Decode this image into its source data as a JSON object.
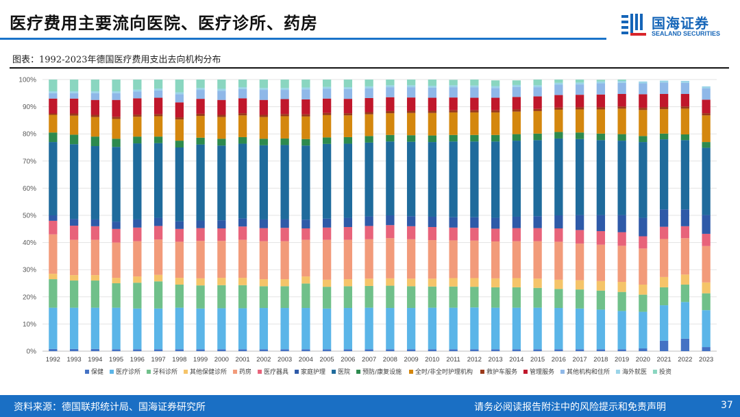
{
  "page": {
    "title": "医疗费用主要流向医院、医疗诊所、药房",
    "figure_caption": "图表：1992-2023年德国医疗费用支出去向机构分布",
    "source": "资料来源：德国联邦统计局、国海证券研究所",
    "disclaimer": "请务必阅读报告附注中的风险提示和免责声明",
    "page_number": "37",
    "logo_cn": "国海证券",
    "logo_en": "SEALAND SECURITIES",
    "brand_color": "#1a6fc4"
  },
  "chart_data": {
    "type": "bar",
    "stacked": true,
    "normalized": true,
    "title": "",
    "xlabel": "",
    "ylabel": "",
    "ylim": [
      0,
      100
    ],
    "yticks": [
      "0%",
      "10%",
      "20%",
      "30%",
      "40%",
      "50%",
      "60%",
      "70%",
      "80%",
      "90%",
      "100%"
    ],
    "grid": true,
    "legend_position": "bottom",
    "categories": [
      "1992",
      "1993",
      "1994",
      "1995",
      "1996",
      "1997",
      "1998",
      "1999",
      "2000",
      "2001",
      "2002",
      "2003",
      "2004",
      "2005",
      "2006",
      "2007",
      "2008",
      "2009",
      "2010",
      "2011",
      "2012",
      "2013",
      "2014",
      "2015",
      "2016",
      "2017",
      "2018",
      "2019",
      "2020",
      "2021",
      "2022",
      "2023"
    ],
    "series": [
      {
        "name": "保健",
        "color": "#4472c4",
        "values": [
          0.8,
          0.8,
          0.8,
          0.7,
          0.7,
          0.7,
          0.7,
          0.7,
          0.7,
          0.7,
          0.7,
          0.7,
          0.7,
          0.7,
          0.7,
          0.7,
          0.7,
          0.7,
          0.7,
          0.7,
          0.7,
          0.7,
          0.7,
          0.7,
          0.7,
          0.7,
          0.7,
          0.7,
          1.0,
          3.8,
          4.6,
          1.5
        ]
      },
      {
        "name": "医疗诊所",
        "color": "#5bb5e8",
        "values": [
          15.2,
          15.2,
          15.2,
          15.3,
          15.0,
          15.0,
          15.3,
          15.0,
          15.1,
          15.1,
          15.2,
          15.2,
          15.2,
          15.0,
          15.2,
          15.3,
          15.2,
          15.2,
          15.3,
          15.3,
          15.4,
          15.3,
          15.3,
          15.3,
          15.2,
          15.0,
          14.6,
          14.1,
          13.5,
          13.1,
          13.5,
          13.6
        ]
      },
      {
        "name": "牙科诊所",
        "color": "#70c08a",
        "values": [
          10.5,
          10.0,
          10.0,
          9.0,
          9.5,
          10.0,
          8.5,
          8.5,
          8.5,
          8.5,
          8.0,
          8.0,
          9.0,
          8.0,
          8.0,
          8.0,
          8.2,
          8.0,
          7.8,
          7.8,
          7.6,
          7.5,
          7.5,
          7.3,
          7.0,
          7.0,
          7.0,
          7.0,
          6.3,
          6.6,
          6.4,
          6.2
        ]
      },
      {
        "name": "其他保健诊所",
        "color": "#f5c469",
        "values": [
          2.0,
          2.0,
          2.0,
          2.0,
          2.3,
          2.4,
          2.5,
          2.6,
          2.7,
          2.7,
          2.6,
          2.6,
          2.6,
          2.6,
          2.6,
          2.7,
          2.7,
          2.8,
          2.9,
          3.1,
          3.2,
          3.3,
          3.4,
          3.4,
          3.4,
          3.4,
          3.5,
          3.7,
          3.7,
          3.8,
          3.7,
          4.0
        ]
      },
      {
        "name": "药房",
        "color": "#f29b7a",
        "values": [
          14.5,
          13.0,
          13.0,
          13.0,
          13.0,
          13.0,
          13.3,
          13.8,
          13.6,
          14.0,
          14.0,
          14.0,
          13.5,
          14.7,
          14.5,
          14.5,
          14.8,
          14.5,
          14.2,
          13.9,
          13.8,
          13.6,
          13.6,
          13.8,
          14.0,
          13.5,
          13.4,
          13.3,
          13.3,
          14.0,
          13.4,
          13.4
        ]
      },
      {
        "name": "医疗器具",
        "color": "#e8637a",
        "values": [
          5.0,
          5.2,
          5.0,
          5.0,
          5.0,
          5.0,
          4.7,
          4.7,
          4.6,
          4.9,
          4.8,
          4.9,
          4.2,
          4.5,
          4.7,
          4.9,
          4.8,
          4.8,
          4.8,
          4.7,
          4.7,
          4.7,
          4.8,
          4.8,
          4.9,
          5.0,
          5.0,
          5.0,
          4.5,
          4.5,
          4.4,
          4.5
        ]
      },
      {
        "name": "家庭护理",
        "color": "#2e5aa8",
        "values": [
          2.0,
          2.5,
          2.5,
          2.7,
          3.0,
          3.0,
          2.8,
          2.8,
          3.0,
          3.0,
          3.2,
          3.2,
          3.2,
          3.3,
          3.4,
          3.5,
          3.6,
          3.7,
          3.8,
          3.8,
          3.9,
          4.0,
          4.2,
          4.4,
          4.8,
          5.5,
          5.9,
          6.3,
          6.8,
          6.4,
          6.2,
          6.9
        ]
      },
      {
        "name": "医院",
        "color": "#1f6b9c",
        "values": [
          27.0,
          27.5,
          27.0,
          27.5,
          28.0,
          27.5,
          27.2,
          28.0,
          27.5,
          27.5,
          27.3,
          27.3,
          27.3,
          27.5,
          27.3,
          27.2,
          27.2,
          27.4,
          27.5,
          27.9,
          27.9,
          28.1,
          28.0,
          28.0,
          28.3,
          28.0,
          27.6,
          27.4,
          27.9,
          25.8,
          25.5,
          24.8
        ]
      },
      {
        "name": "预防/康复设施",
        "color": "#2d8a4e",
        "values": [
          3.5,
          3.5,
          3.5,
          3.0,
          2.5,
          2.4,
          2.5,
          2.5,
          2.5,
          2.4,
          2.4,
          2.4,
          2.4,
          2.4,
          2.4,
          2.4,
          2.4,
          2.4,
          2.4,
          2.4,
          2.4,
          2.4,
          2.4,
          2.4,
          2.4,
          2.4,
          2.4,
          2.4,
          2.2,
          2.1,
          2.1,
          2.1
        ]
      },
      {
        "name": "全时/非全时护理机构",
        "color": "#d4870e",
        "values": [
          6.5,
          7.0,
          7.2,
          7.3,
          7.3,
          7.5,
          7.8,
          8.0,
          8.0,
          8.0,
          8.0,
          8.2,
          8.3,
          8.2,
          8.0,
          8.0,
          8.0,
          8.2,
          8.3,
          8.3,
          8.3,
          8.3,
          8.3,
          8.3,
          8.2,
          8.5,
          8.9,
          9.4,
          9.6,
          9.0,
          9.5,
          9.8
        ]
      },
      {
        "name": "救护车服务",
        "color": "#9b3a1a",
        "values": [
          0.5,
          0.8,
          0.8,
          0.8,
          0.8,
          0.8,
          0.8,
          0.8,
          0.8,
          0.8,
          0.8,
          0.8,
          0.8,
          0.8,
          0.8,
          0.8,
          0.8,
          0.8,
          0.8,
          0.8,
          0.8,
          0.8,
          0.8,
          0.8,
          0.8,
          0.8,
          0.8,
          0.8,
          0.8,
          0.8,
          0.8,
          0.8
        ]
      },
      {
        "name": "管理服务",
        "color": "#c0172b",
        "values": [
          5.5,
          5.5,
          5.5,
          6.2,
          6.0,
          6.0,
          5.5,
          5.5,
          5.5,
          5.5,
          5.5,
          5.5,
          5.5,
          5.3,
          5.3,
          5.2,
          5.1,
          4.9,
          4.8,
          4.7,
          4.6,
          4.6,
          4.6,
          4.6,
          4.6,
          4.6,
          4.7,
          4.6,
          5.0,
          4.8,
          4.6,
          5.0
        ]
      },
      {
        "name": "其他机构和住所",
        "color": "#8fb8e8",
        "values": [
          2.0,
          2.0,
          2.5,
          2.5,
          2.5,
          2.7,
          3.0,
          3.3,
          3.4,
          3.4,
          3.7,
          3.4,
          3.7,
          3.6,
          3.6,
          3.6,
          3.7,
          3.8,
          3.7,
          3.8,
          3.8,
          3.6,
          3.7,
          3.4,
          3.8,
          3.8,
          4.1,
          4.1,
          4.0,
          4.2,
          4.1,
          4.2
        ]
      },
      {
        "name": "海外就医",
        "color": "#9ad4e8",
        "values": [
          0.7,
          0.7,
          0.7,
          0.7,
          0.7,
          0.7,
          0.7,
          0.7,
          0.7,
          0.7,
          0.7,
          0.7,
          0.7,
          0.7,
          0.7,
          0.7,
          0.7,
          0.7,
          0.7,
          0.7,
          0.7,
          0.7,
          0.7,
          0.7,
          0.7,
          0.7,
          0.7,
          0.7,
          0.7,
          0.7,
          0.7,
          0.7
        ]
      },
      {
        "name": "投资",
        "color": "#8ad6c0",
        "values": [
          4.3,
          4.3,
          4.3,
          4.3,
          3.7,
          3.3,
          4.7,
          3.1,
          3.4,
          2.8,
          3.1,
          3.1,
          2.9,
          2.7,
          2.8,
          2.5,
          2.1,
          2.1,
          2.3,
          2.0,
          2.2,
          2.1,
          1.7,
          2.1,
          1.2,
          1.1,
          0.6,
          0.5,
          0.0,
          0.0,
          0.0,
          0.0
        ]
      }
    ]
  }
}
